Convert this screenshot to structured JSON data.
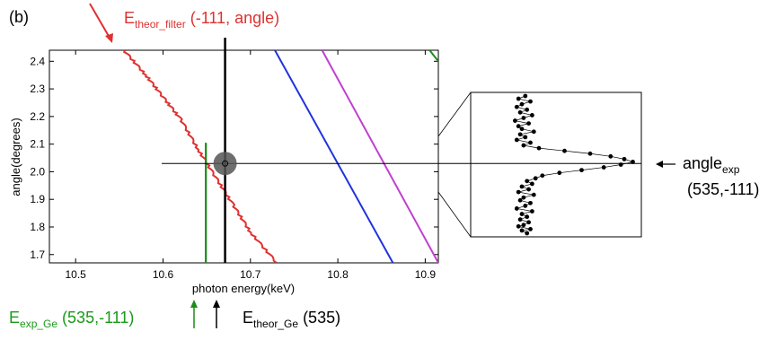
{
  "figure": {
    "panel_label": "(b)"
  },
  "colors": {
    "filter": "#e03030",
    "exp_ge": "#1a8c1a",
    "theor_ge": "#000000",
    "blue": "#2233dd",
    "magenta": "#c040d0",
    "green_curve": "#1a8c1a"
  },
  "annotations": {
    "theor_filter": {
      "main": "E",
      "sub": "theor_filter",
      "tail": " (-111, angle)"
    },
    "exp_ge": {
      "main": "E",
      "sub": "exp_Ge",
      "tail": " (535,-111)"
    },
    "theor_ge": {
      "main": "E",
      "sub": "theor_Ge",
      "tail": " (535)"
    },
    "angle_exp": {
      "main": "angle",
      "sub": "exp",
      "line2": "(535,-111)"
    }
  },
  "chart_data": {
    "type": "line",
    "xlabel": "photon energy(keV)",
    "ylabel": "angle(degrees)",
    "xlim": [
      10.47,
      10.915
    ],
    "ylim": [
      1.67,
      2.44
    ],
    "x_ticks": [
      "10.5",
      "10.6",
      "10.7",
      "10.8",
      "10.9"
    ],
    "x_tick_values": [
      10.5,
      10.6,
      10.7,
      10.8,
      10.9
    ],
    "y_ticks": [
      "1.7",
      "1.8",
      "1.9",
      "2.0",
      "2.1",
      "2.2",
      "2.3",
      "2.4"
    ],
    "y_tick_values": [
      1.7,
      1.8,
      1.9,
      2.0,
      2.1,
      2.2,
      2.3,
      2.4
    ],
    "grid": false,
    "series": [
      {
        "color": "#e03030",
        "style": "jagged",
        "x": [
          10.555,
          10.58,
          10.6,
          10.62,
          10.64,
          10.66,
          10.68,
          10.7,
          10.73
        ],
        "y": [
          2.44,
          2.35,
          2.27,
          2.19,
          2.08,
          1.98,
          1.88,
          1.78,
          1.67
        ]
      },
      {
        "color": "#2233dd",
        "style": "straight",
        "x": [
          10.728,
          10.863
        ],
        "y": [
          2.44,
          1.67
        ]
      },
      {
        "color": "#c040d0",
        "style": "straight",
        "x": [
          10.782,
          10.915
        ],
        "y": [
          2.44,
          1.67
        ]
      },
      {
        "color": "#1a8c1a",
        "style": "straight",
        "x": [
          10.905,
          10.915
        ],
        "y": [
          2.44,
          2.4
        ]
      }
    ],
    "vertical_lines": [
      {
        "name": "E_exp_Ge",
        "x": 10.649,
        "color": "#1a8c1a",
        "y_top": 2.105
      },
      {
        "name": "E_theor_Ge",
        "x": 10.671,
        "color": "#000000",
        "y_top": 2.44
      }
    ],
    "horizontal_line": {
      "y": 2.03
    },
    "marker": {
      "x": 10.671,
      "y": 2.03
    },
    "inset": {
      "type": "scatter",
      "peak_y": 2.03,
      "x": [
        0.32,
        0.28,
        0.35,
        0.3,
        0.27,
        0.33,
        0.29,
        0.36,
        0.31,
        0.26,
        0.34,
        0.28,
        0.3,
        0.37,
        0.29,
        0.32,
        0.27,
        0.35,
        0.31,
        0.4,
        0.55,
        0.7,
        0.82,
        0.9,
        0.95,
        0.88,
        0.78,
        0.65,
        0.52,
        0.42,
        0.38,
        0.33,
        0.36,
        0.3,
        0.34,
        0.28,
        0.37,
        0.31,
        0.29,
        0.35,
        0.32,
        0.27,
        0.36,
        0.3,
        0.33,
        0.29,
        0.34,
        0.31,
        0.28,
        0.35,
        0.3,
        0.33
      ],
      "y": [
        0.0,
        0.02,
        0.04,
        0.06,
        0.08,
        0.1,
        0.12,
        0.14,
        0.16,
        0.18,
        0.2,
        0.22,
        0.24,
        0.26,
        0.28,
        0.3,
        0.32,
        0.34,
        0.36,
        0.38,
        0.4,
        0.42,
        0.44,
        0.46,
        0.48,
        0.5,
        0.52,
        0.54,
        0.56,
        0.58,
        0.6,
        0.62,
        0.64,
        0.66,
        0.68,
        0.7,
        0.72,
        0.74,
        0.76,
        0.78,
        0.8,
        0.82,
        0.84,
        0.86,
        0.88,
        0.9,
        0.92,
        0.94,
        0.95,
        0.97,
        0.98,
        1.0
      ]
    }
  }
}
